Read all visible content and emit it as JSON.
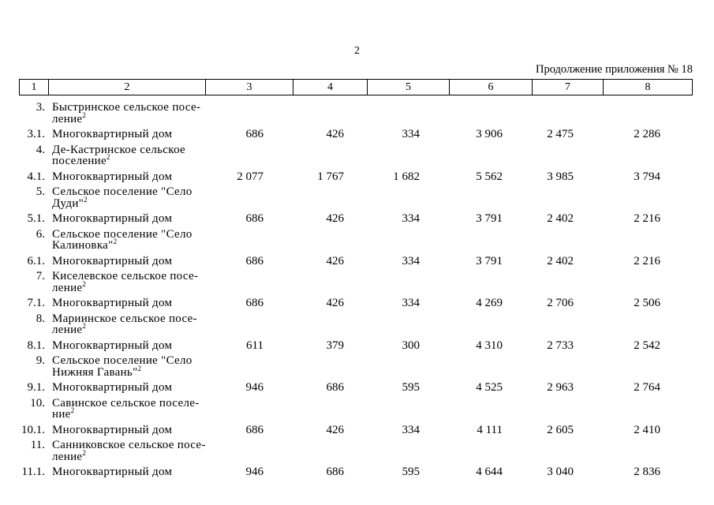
{
  "page": {
    "number": "2",
    "continuation": "Продолжение приложения № 18"
  },
  "table": {
    "header": [
      "1",
      "2",
      "3",
      "4",
      "5",
      "6",
      "7",
      "8"
    ],
    "rows": [
      {
        "num": "3.",
        "kind": "section",
        "line1": "Быстринское сельское посе-",
        "line2": "ление",
        "sup": "2",
        "values": [
          "",
          "",
          "",
          "",
          "",
          ""
        ]
      },
      {
        "num": "3.1.",
        "kind": "item",
        "line1": "Многоквартирный дом",
        "line2": "",
        "sup": "",
        "values": [
          "686",
          "426",
          "334",
          "3 906",
          "2 475",
          "2 286"
        ]
      },
      {
        "num": "4.",
        "kind": "section",
        "line1": "Де-Кастринское сельское",
        "line2": "поселение",
        "sup": "2",
        "values": [
          "",
          "",
          "",
          "",
          "",
          ""
        ]
      },
      {
        "num": "4.1.",
        "kind": "item",
        "line1": "Многоквартирный дом",
        "line2": "",
        "sup": "",
        "values": [
          "2 077",
          "1 767",
          "1 682",
          "5 562",
          "3 985",
          "3 794"
        ]
      },
      {
        "num": "5.",
        "kind": "section",
        "line1": "Сельское поселение \"Село",
        "line2": "Дуди\"",
        "sup": "2",
        "values": [
          "",
          "",
          "",
          "",
          "",
          ""
        ]
      },
      {
        "num": "5.1.",
        "kind": "item",
        "line1": "Многоквартирный дом",
        "line2": "",
        "sup": "",
        "values": [
          "686",
          "426",
          "334",
          "3 791",
          "2 402",
          "2 216"
        ]
      },
      {
        "num": "6.",
        "kind": "section",
        "line1": "Сельское поселение \"Село",
        "line2": "Калиновка\"",
        "sup": "2",
        "values": [
          "",
          "",
          "",
          "",
          "",
          ""
        ]
      },
      {
        "num": "6.1.",
        "kind": "item",
        "line1": "Многоквартирный дом",
        "line2": "",
        "sup": "",
        "values": [
          "686",
          "426",
          "334",
          "3 791",
          "2 402",
          "2 216"
        ]
      },
      {
        "num": "7.",
        "kind": "section",
        "line1": "Киселевское сельское посе-",
        "line2": "ление",
        "sup": "2",
        "values": [
          "",
          "",
          "",
          "",
          "",
          ""
        ]
      },
      {
        "num": "7.1.",
        "kind": "item",
        "line1": "Многоквартирный дом",
        "line2": "",
        "sup": "",
        "values": [
          "686",
          "426",
          "334",
          "4 269",
          "2 706",
          "2 506"
        ]
      },
      {
        "num": "8.",
        "kind": "section",
        "line1": "Мариинское сельское посе-",
        "line2": "ление",
        "sup": "2",
        "values": [
          "",
          "",
          "",
          "",
          "",
          ""
        ]
      },
      {
        "num": "8.1.",
        "kind": "item",
        "line1": "Многоквартирный дом",
        "line2": "",
        "sup": "",
        "values": [
          "611",
          "379",
          "300",
          "4 310",
          "2 733",
          "2 542"
        ]
      },
      {
        "num": "9.",
        "kind": "section",
        "line1": "Сельское поселение \"Село",
        "line2": "Нижняя Гавань\"",
        "sup": "2",
        "values": [
          "",
          "",
          "",
          "",
          "",
          ""
        ]
      },
      {
        "num": "9.1.",
        "kind": "item",
        "line1": "Многоквартирный дом",
        "line2": "",
        "sup": "",
        "values": [
          "946",
          "686",
          "595",
          "4 525",
          "2 963",
          "2 764"
        ]
      },
      {
        "num": "10.",
        "kind": "section",
        "line1": "Савинское сельское поселе-",
        "line2": "ние",
        "sup": "2",
        "values": [
          "",
          "",
          "",
          "",
          "",
          ""
        ]
      },
      {
        "num": "10.1.",
        "kind": "item",
        "line1": "Многоквартирный дом",
        "line2": "",
        "sup": "",
        "values": [
          "686",
          "426",
          "334",
          "4 111",
          "2 605",
          "2 410"
        ]
      },
      {
        "num": "11.",
        "kind": "section",
        "line1": "Санниковское сельское посе-",
        "line2": "ление",
        "sup": "2",
        "values": [
          "",
          "",
          "",
          "",
          "",
          ""
        ]
      },
      {
        "num": "11.1.",
        "kind": "item",
        "line1": "Многоквартирный дом",
        "line2": "",
        "sup": "",
        "values": [
          "946",
          "686",
          "595",
          "4 644",
          "3 040",
          "2 836"
        ]
      }
    ]
  }
}
